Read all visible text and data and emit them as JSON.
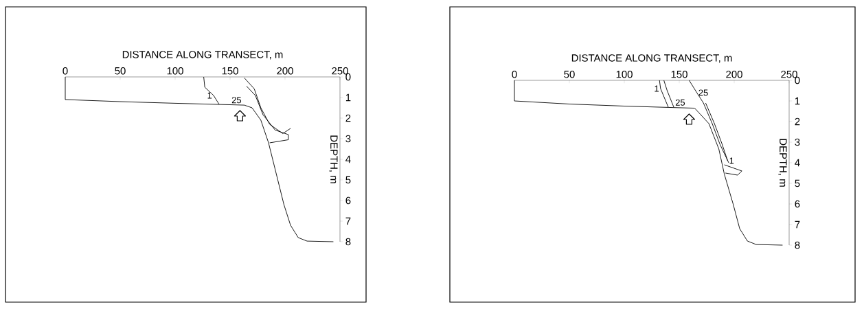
{
  "chart_data": [
    {
      "type": "line",
      "xlabel": "DISTANCE ALONG TRANSECT, m",
      "ylabel": "DEPTH, m",
      "xlim": [
        0,
        250
      ],
      "ylim": [
        8,
        0
      ],
      "xticks": [
        0,
        50,
        100,
        150,
        200,
        250
      ],
      "yticks": [
        0,
        1,
        2,
        3,
        4,
        5,
        6,
        7,
        8
      ],
      "series": [
        {
          "color": "#000000",
          "x": [
            0,
            0,
            50,
            100,
            150,
            163,
            170,
            178,
            185,
            192,
            199,
            205,
            212,
            220,
            244
          ],
          "values": [
            0,
            1.1,
            1.2,
            1.28,
            1.35,
            1.37,
            1.5,
            2.1,
            3.2,
            4.7,
            6.2,
            7.2,
            7.8,
            7.97,
            8
          ]
        },
        {
          "color": "#000000",
          "x": [
            126,
            127,
            135,
            140
          ],
          "values": [
            0,
            0.5,
            0.9,
            1.33
          ]
        },
        {
          "color": "#000000",
          "x": [
            163,
            172,
            178,
            186,
            198,
            205
          ],
          "values": [
            0.05,
            0.58,
            1.5,
            2.3,
            2.75,
            2.5
          ]
        },
        {
          "color": "#000000",
          "x": [
            165,
            173,
            180,
            191,
            203,
            203,
            186
          ],
          "values": [
            0.45,
            0.9,
            1.84,
            2.58,
            2.8,
            3.05,
            3.2
          ]
        }
      ],
      "annotations": [
        {
          "text": "1",
          "x": 135,
          "y": 0.9
        },
        {
          "text": "25",
          "x": 150,
          "y": 1.35
        }
      ]
    },
    {
      "type": "line",
      "xlabel": "DISTANCE ALONG TRANSECT, m",
      "ylabel": "DEPTH, m",
      "xlim": [
        0,
        250
      ],
      "ylim": [
        8,
        0
      ],
      "xticks": [
        0,
        50,
        100,
        150,
        200,
        250
      ],
      "yticks": [
        0,
        1,
        2,
        3,
        4,
        5,
        6,
        7,
        8
      ],
      "series": [
        {
          "color": "#000000",
          "x": [
            0,
            0,
            50,
            100,
            150,
            164,
            177,
            186,
            191,
            199,
            205,
            212,
            220,
            244
          ],
          "values": [
            0,
            1.0,
            1.15,
            1.25,
            1.33,
            1.35,
            2.1,
            3.33,
            4.55,
            6.0,
            7.2,
            7.8,
            7.97,
            8
          ]
        },
        {
          "color": "#000000",
          "x": [
            132,
            133,
            140
          ],
          "values": [
            0,
            0.4,
            1.3
          ]
        },
        {
          "color": "#000000",
          "x": [
            136,
            139,
            145
          ],
          "values": [
            0,
            0.5,
            1.3
          ]
        },
        {
          "color": "#000000",
          "x": [
            159,
            166,
            172,
            180,
            187,
            195
          ],
          "values": [
            0,
            0.6,
            1.1,
            2.1,
            3.1,
            4.0
          ]
        },
        {
          "color": "#000000",
          "x": [
            174,
            182,
            189,
            194
          ],
          "values": [
            1.1,
            2.1,
            3.1,
            3.9
          ]
        },
        {
          "color": "#000000",
          "x": [
            191,
            207,
            203,
            192
          ],
          "values": [
            4.1,
            4.4,
            4.6,
            4.5
          ]
        }
      ],
      "annotations": [
        {
          "text": "1",
          "x": 133,
          "y": 0.4
        },
        {
          "text": "25",
          "x": 145,
          "y": 1.3
        },
        {
          "text": "25",
          "x": 166,
          "y": 0.6
        },
        {
          "text": "1",
          "x": 194,
          "y": 3.9
        }
      ]
    }
  ]
}
